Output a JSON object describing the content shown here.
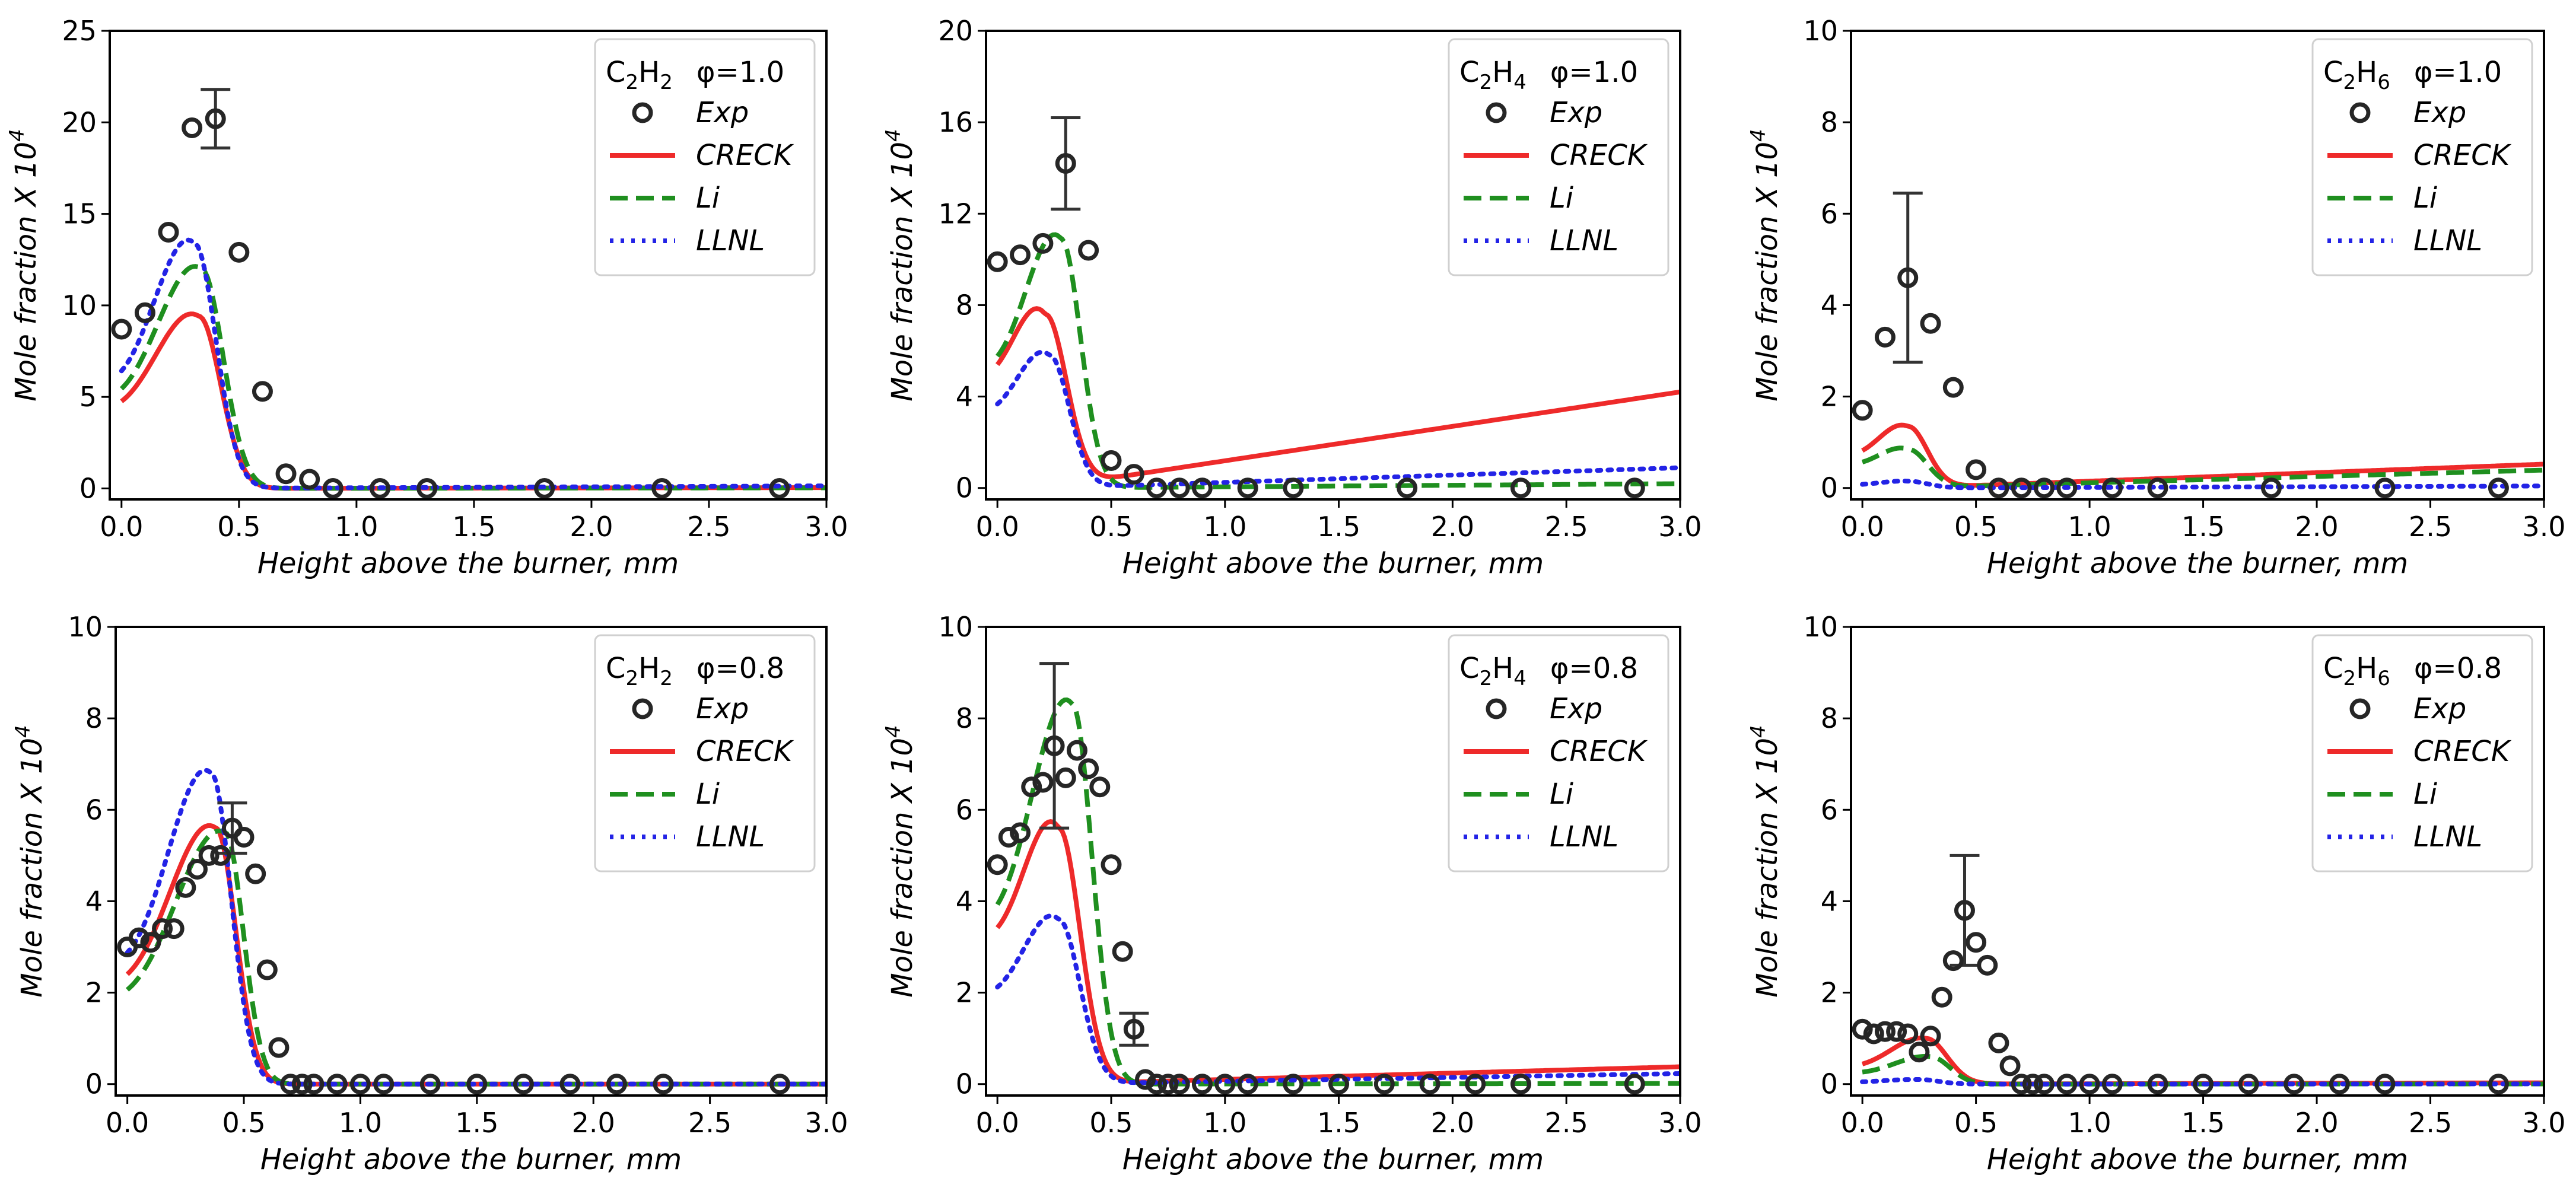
{
  "figure": {
    "series_styles": {
      "Exp": {
        "color": "#262626"
      },
      "CRECK": {
        "color": "#ee2a2a"
      },
      "Li": {
        "color": "#1f8f1f"
      },
      "LLNL": {
        "color": "#2323e6"
      }
    }
  },
  "chart_data": [
    {
      "type": "line",
      "species": "C2H2",
      "species_base": "C",
      "species_sub1": "2",
      "species_mid": "H",
      "species_sub2": "2",
      "phi_label": "φ=1.0",
      "xlabel": "Height above the burner, mm",
      "ylabel_main": "Mole fraction X 10",
      "ylabel_exp": "4",
      "xlim": [
        -0.05,
        3.0
      ],
      "ylim": [
        -0.6,
        25
      ],
      "xticks": [
        "0.0",
        "0.5",
        "1.0",
        "1.5",
        "2.0",
        "2.5",
        "3.0"
      ],
      "yticks": [
        "0",
        "5",
        "10",
        "15",
        "20",
        "25"
      ],
      "legend_labels": [
        "Exp",
        "CRECK",
        "Li",
        "LLNL"
      ],
      "exp": {
        "x": [
          0.0,
          0.1,
          0.2,
          0.3,
          0.4,
          0.5,
          0.6,
          0.7,
          0.8,
          0.9,
          1.1,
          1.3,
          1.8,
          2.3,
          2.8
        ],
        "y": [
          8.7,
          9.6,
          14.0,
          19.7,
          20.2,
          12.9,
          5.3,
          0.8,
          0.5,
          0.0,
          0.0,
          0.0,
          0.0,
          0.0,
          0.0
        ],
        "err": [
          {
            "x": 0.4,
            "y": 20.2,
            "e": 1.6
          }
        ]
      },
      "models": [
        {
          "name": "CRECK",
          "peak_x": 0.33,
          "peak": 9.4,
          "start": 3.6,
          "ws": 0.26,
          "wf": 0.13
        },
        {
          "name": "Li",
          "peak_x": 0.34,
          "peak": 12.0,
          "start": 4.0,
          "ws": 0.26,
          "wf": 0.13
        },
        {
          "name": "LLNL",
          "peak_x": 0.31,
          "peak": 13.4,
          "start": 4.8,
          "ws": 0.24,
          "wf": 0.13
        }
      ]
    },
    {
      "type": "line",
      "species": "C2H4",
      "species_base": "C",
      "species_sub1": "2",
      "species_mid": "H",
      "species_sub2": "4",
      "phi_label": "φ=1.0",
      "xlabel": "Height above the burner, mm",
      "ylabel_main": "Mole fraction X 10",
      "ylabel_exp": "4",
      "xlim": [
        -0.05,
        3.0
      ],
      "ylim": [
        -0.5,
        20
      ],
      "xticks": [
        "0.0",
        "0.5",
        "1.0",
        "1.5",
        "2.0",
        "2.5",
        "3.0"
      ],
      "yticks": [
        "0",
        "4",
        "8",
        "12",
        "16",
        "20"
      ],
      "legend_labels": [
        "Exp",
        "CRECK",
        "Li",
        "LLNL"
      ],
      "exp": {
        "x": [
          0.0,
          0.1,
          0.2,
          0.3,
          0.4,
          0.5,
          0.6,
          0.7,
          0.8,
          0.9,
          1.1,
          1.3,
          1.8,
          2.3,
          2.8
        ],
        "y": [
          9.9,
          10.2,
          10.7,
          14.2,
          10.4,
          1.2,
          0.6,
          0.0,
          0.0,
          0.0,
          0.0,
          0.0,
          0.0,
          0.0,
          0.0
        ],
        "err": [
          {
            "x": 0.3,
            "y": 14.2,
            "e": 2.0
          }
        ]
      },
      "models": [
        {
          "name": "CRECK",
          "peak_x": 0.21,
          "peak": 7.6,
          "start": 4.3,
          "ws": 0.2,
          "wf": 0.13
        },
        {
          "name": "Li",
          "peak_x": 0.28,
          "peak": 10.9,
          "start": 4.5,
          "ws": 0.22,
          "wf": 0.12
        },
        {
          "name": "LLNL",
          "peak_x": 0.23,
          "peak": 5.8,
          "start": 2.9,
          "ws": 0.2,
          "wf": 0.12
        }
      ]
    },
    {
      "type": "line",
      "species": "C2H6",
      "species_base": "C",
      "species_sub1": "2",
      "species_mid": "H",
      "species_sub2": "6",
      "phi_label": "φ=1.0",
      "xlabel": "Height above the burner, mm",
      "ylabel_main": "Mole fraction X 10",
      "ylabel_exp": "4",
      "xlim": [
        -0.05,
        3.0
      ],
      "ylim": [
        -0.25,
        10
      ],
      "xticks": [
        "0.0",
        "0.5",
        "1.0",
        "1.5",
        "2.0",
        "2.5",
        "3.0"
      ],
      "yticks": [
        "0",
        "2",
        "4",
        "6",
        "8",
        "10"
      ],
      "legend_labels": [
        "Exp",
        "CRECK",
        "Li",
        "LLNL"
      ],
      "exp": {
        "x": [
          0.0,
          0.1,
          0.2,
          0.3,
          0.4,
          0.5,
          0.6,
          0.7,
          0.8,
          0.9,
          1.1,
          1.3,
          1.8,
          2.3,
          2.8
        ],
        "y": [
          1.7,
          3.3,
          4.6,
          3.6,
          2.2,
          0.4,
          0.0,
          0.0,
          0.0,
          0.0,
          0.0,
          0.0,
          0.0,
          0.0,
          0.0
        ],
        "err": [
          {
            "x": 0.2,
            "y": 4.6,
            "e": 1.85
          }
        ]
      },
      "models": [
        {
          "name": "CRECK",
          "peak_x": 0.2,
          "peak": 1.35,
          "start": 0.6,
          "ws": 0.18,
          "wf": 0.12
        },
        {
          "name": "Li",
          "peak_x": 0.2,
          "peak": 0.85,
          "start": 0.45,
          "ws": 0.18,
          "wf": 0.12
        },
        {
          "name": "LLNL",
          "peak_x": 0.2,
          "peak": 0.15,
          "start": 0.05,
          "ws": 0.18,
          "wf": 0.12
        }
      ]
    },
    {
      "type": "line",
      "species": "C2H2",
      "species_base": "C",
      "species_sub1": "2",
      "species_mid": "H",
      "species_sub2": "2",
      "phi_label": "φ=0.8",
      "xlabel": "Height above the burner, mm",
      "ylabel_main": "Mole fraction X 10",
      "ylabel_exp": "4",
      "xlim": [
        -0.05,
        3.0
      ],
      "ylim": [
        -0.25,
        10
      ],
      "xticks": [
        "0.0",
        "0.5",
        "1.0",
        "1.5",
        "2.0",
        "2.5",
        "3.0"
      ],
      "yticks": [
        "0",
        "2",
        "4",
        "6",
        "8",
        "10"
      ],
      "legend_labels": [
        "Exp",
        "CRECK",
        "Li",
        "LLNL"
      ],
      "exp": {
        "x": [
          0.0,
          0.05,
          0.1,
          0.15,
          0.2,
          0.25,
          0.3,
          0.35,
          0.4,
          0.45,
          0.5,
          0.55,
          0.6,
          0.65,
          0.7,
          0.75,
          0.8,
          0.9,
          1.0,
          1.1,
          1.3,
          1.5,
          1.7,
          1.9,
          2.1,
          2.3,
          2.8
        ],
        "y": [
          3.0,
          3.2,
          3.1,
          3.4,
          3.4,
          4.3,
          4.7,
          5.0,
          5.0,
          5.6,
          5.4,
          4.6,
          2.5,
          0.8,
          0.0,
          0.0,
          0.0,
          0.0,
          0.0,
          0.0,
          0.0,
          0.0,
          0.0,
          0.0,
          0.0,
          0.0,
          0.0
        ],
        "err": [
          {
            "x": 0.45,
            "y": 5.6,
            "e": 0.55
          }
        ]
      },
      "models": [
        {
          "name": "CRECK",
          "peak_x": 0.38,
          "peak": 5.6,
          "start": 1.8,
          "ws": 0.28,
          "wf": 0.12
        },
        {
          "name": "Li",
          "peak_x": 0.42,
          "peak": 5.5,
          "start": 1.5,
          "ws": 0.3,
          "wf": 0.11
        },
        {
          "name": "LLNL",
          "peak_x": 0.36,
          "peak": 6.8,
          "start": 2.2,
          "ws": 0.26,
          "wf": 0.12
        }
      ]
    },
    {
      "type": "line",
      "species": "C2H4",
      "species_base": "C",
      "species_sub1": "2",
      "species_mid": "H",
      "species_sub2": "4",
      "phi_label": "φ=0.8",
      "xlabel": "Height above the burner, mm",
      "ylabel_main": "Mole fraction X 10",
      "ylabel_exp": "4",
      "xlim": [
        -0.05,
        3.0
      ],
      "ylim": [
        -0.25,
        10
      ],
      "xticks": [
        "0.0",
        "0.5",
        "1.0",
        "1.5",
        "2.0",
        "2.5",
        "3.0"
      ],
      "yticks": [
        "0",
        "2",
        "4",
        "6",
        "8",
        "10"
      ],
      "legend_labels": [
        "Exp",
        "CRECK",
        "Li",
        "LLNL"
      ],
      "exp": {
        "x": [
          0.0,
          0.05,
          0.1,
          0.15,
          0.2,
          0.25,
          0.3,
          0.35,
          0.4,
          0.45,
          0.5,
          0.55,
          0.6,
          0.65,
          0.7,
          0.75,
          0.8,
          0.9,
          1.0,
          1.1,
          1.3,
          1.5,
          1.7,
          1.9,
          2.1,
          2.3,
          2.8
        ],
        "y": [
          4.8,
          5.4,
          5.5,
          6.5,
          6.6,
          7.4,
          6.7,
          7.3,
          6.9,
          6.5,
          4.8,
          2.9,
          1.2,
          0.1,
          0.0,
          0.0,
          0.0,
          0.0,
          0.0,
          0.0,
          0.0,
          0.0,
          0.0,
          0.0,
          0.0,
          0.0,
          0.0
        ],
        "err": [
          {
            "x": 0.25,
            "y": 7.4,
            "e": 1.8
          },
          {
            "x": 0.6,
            "y": 1.2,
            "e": 0.35
          }
        ]
      },
      "models": [
        {
          "name": "CRECK",
          "peak_x": 0.27,
          "peak": 5.6,
          "start": 2.8,
          "ws": 0.22,
          "wf": 0.13
        },
        {
          "name": "Li",
          "peak_x": 0.33,
          "peak": 8.3,
          "start": 3.0,
          "ws": 0.25,
          "wf": 0.12
        },
        {
          "name": "LLNL",
          "peak_x": 0.27,
          "peak": 3.6,
          "start": 1.7,
          "ws": 0.22,
          "wf": 0.13
        }
      ]
    },
    {
      "type": "line",
      "species": "C2H6",
      "species_base": "C",
      "species_sub1": "2",
      "species_mid": "H",
      "species_sub2": "6",
      "phi_label": "φ=0.8",
      "xlabel": "Height above the burner, mm",
      "ylabel_main": "Mole fraction X 10",
      "ylabel_exp": "4",
      "xlim": [
        -0.05,
        3.0
      ],
      "ylim": [
        -0.25,
        10
      ],
      "xticks": [
        "0.0",
        "0.5",
        "1.0",
        "1.5",
        "2.0",
        "2.5",
        "3.0"
      ],
      "yticks": [
        "0",
        "2",
        "4",
        "6",
        "8",
        "10"
      ],
      "legend_labels": [
        "Exp",
        "CRECK",
        "Li",
        "LLNL"
      ],
      "exp": {
        "x": [
          0.0,
          0.05,
          0.1,
          0.15,
          0.2,
          0.25,
          0.3,
          0.35,
          0.4,
          0.45,
          0.5,
          0.55,
          0.6,
          0.65,
          0.7,
          0.75,
          0.8,
          0.9,
          1.0,
          1.1,
          1.3,
          1.5,
          1.7,
          1.9,
          2.1,
          2.3,
          2.8
        ],
        "y": [
          1.2,
          1.1,
          1.15,
          1.15,
          1.1,
          0.7,
          1.05,
          1.9,
          2.7,
          3.8,
          3.1,
          2.6,
          0.9,
          0.4,
          0.0,
          0.0,
          0.0,
          0.0,
          0.0,
          0.0,
          0.0,
          0.0,
          0.0,
          0.0,
          0.0,
          0.0,
          0.0
        ],
        "err": [
          {
            "x": 0.45,
            "y": 3.8,
            "e": 1.2
          }
        ]
      },
      "models": [
        {
          "name": "CRECK",
          "peak_x": 0.28,
          "peak": 1.0,
          "start": 0.3,
          "ws": 0.22,
          "wf": 0.13
        },
        {
          "name": "Li",
          "peak_x": 0.3,
          "peak": 0.6,
          "start": 0.2,
          "ws": 0.22,
          "wf": 0.12
        },
        {
          "name": "LLNL",
          "peak_x": 0.25,
          "peak": 0.1,
          "start": 0.03,
          "ws": 0.22,
          "wf": 0.12
        }
      ]
    }
  ]
}
